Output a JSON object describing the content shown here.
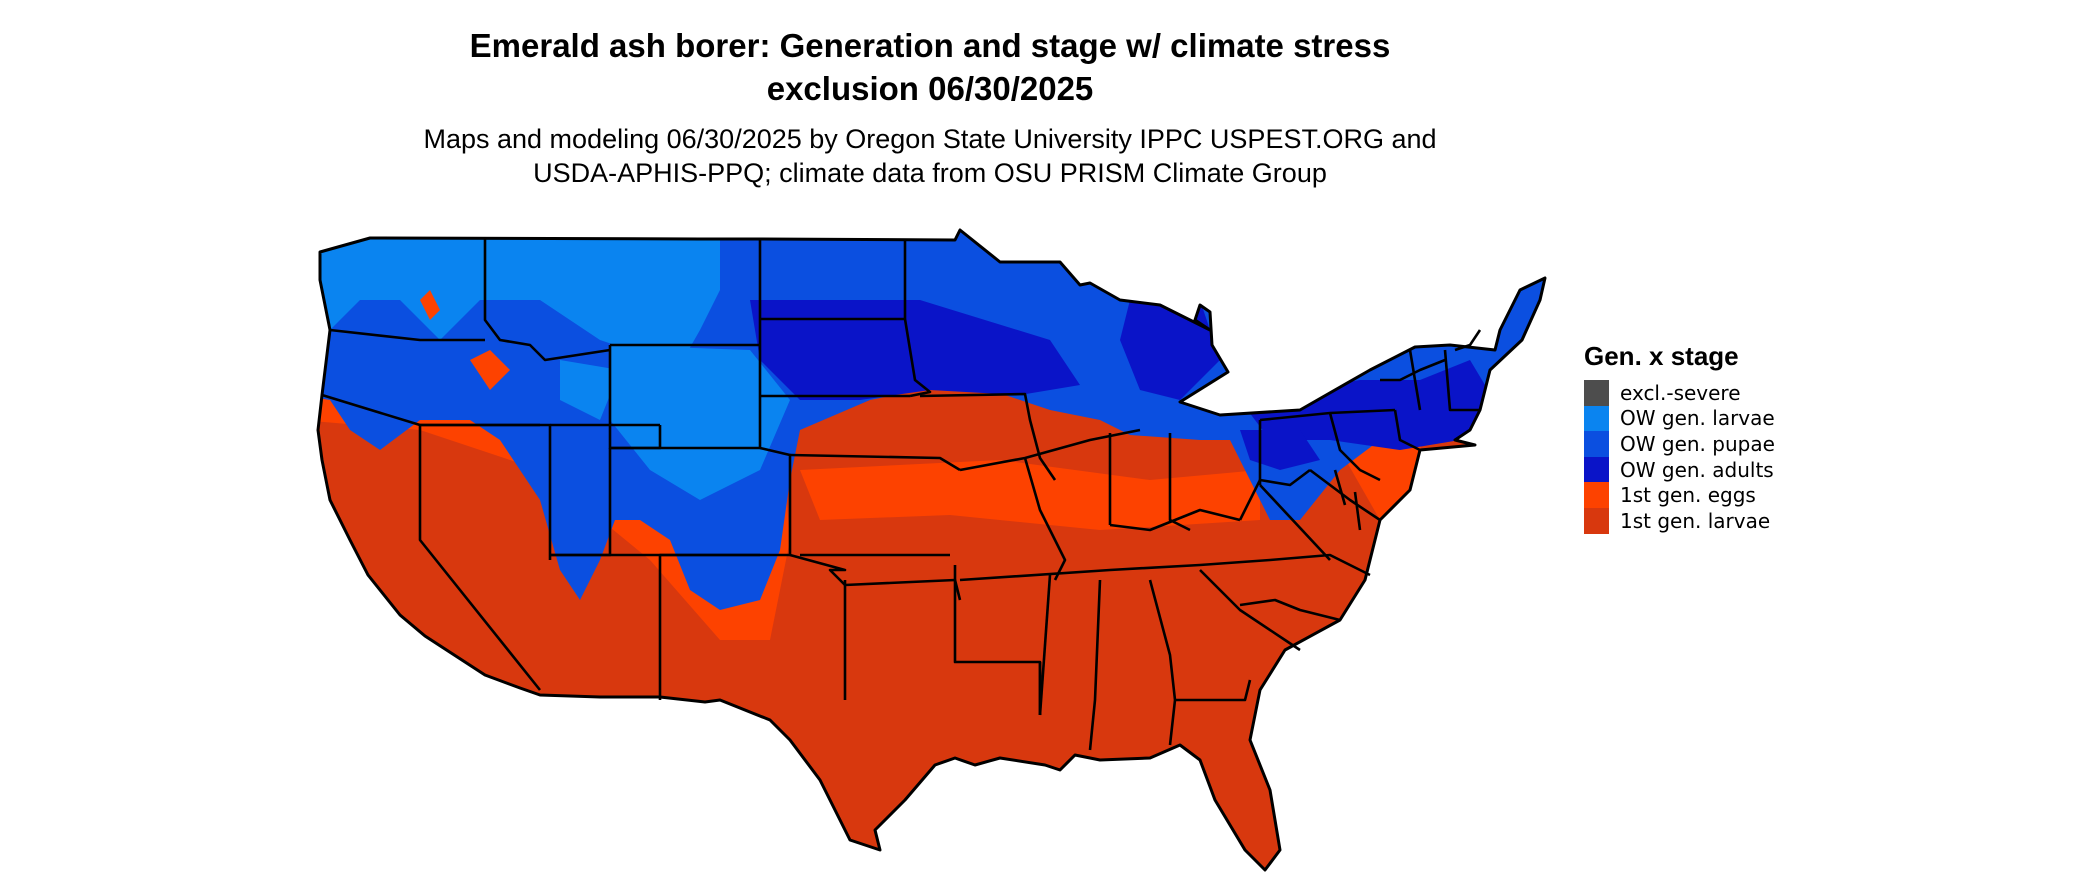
{
  "title_line1": "Emerald ash borer: Generation and stage w/ climate stress",
  "title_line2": "exclusion 06/30/2025",
  "subtitle_line1": "Maps and modeling 06/30/2025 by Oregon State University IPPC USPEST.ORG and",
  "subtitle_line2": "USDA-APHIS-PPQ; climate data from OSU PRISM Climate Group",
  "legend": {
    "title": "Gen. x stage",
    "items": [
      {
        "label": "excl.-severe",
        "color": "#4d4d4d"
      },
      {
        "label": "OW gen. larvae",
        "color": "#0a84f0"
      },
      {
        "label": "OW gen. pupae",
        "color": "#0b4fe0"
      },
      {
        "label": "OW gen. adults",
        "color": "#0a14c8"
      },
      {
        "label": "1st gen. eggs",
        "color": "#fd4200"
      },
      {
        "label": "1st gen. larvae",
        "color": "#d8380e"
      }
    ]
  }
}
